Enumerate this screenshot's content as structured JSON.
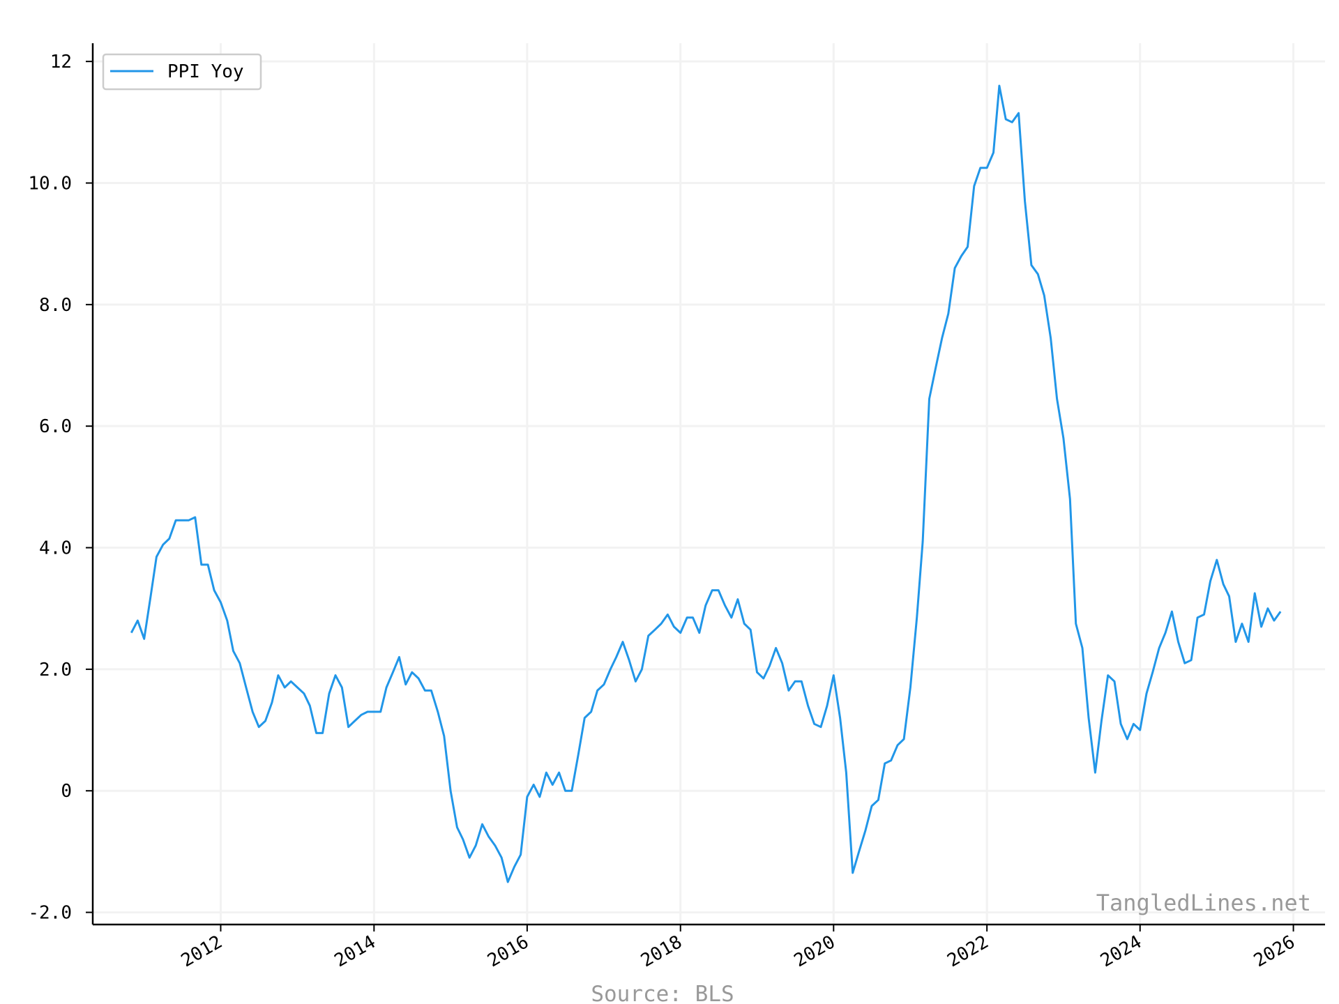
{
  "chart_data": {
    "type": "line",
    "title": "",
    "xlabel": "",
    "ylabel": "",
    "xlim": [
      "2010-05-01",
      "2026-06-01"
    ],
    "ylim": [
      -2.2,
      12.3
    ],
    "grid": true,
    "legend_placement": "top-left",
    "y_ticks": [
      {
        "value": 12,
        "label": "12"
      },
      {
        "value": 10,
        "label": "10.0"
      },
      {
        "value": 8,
        "label": "8.0"
      },
      {
        "value": 6,
        "label": "6.0"
      },
      {
        "value": 4,
        "label": "4.0"
      },
      {
        "value": 2,
        "label": "2.0"
      },
      {
        "value": 0,
        "label": "0"
      },
      {
        "value": -2,
        "label": "-2.0"
      }
    ],
    "x_ticks": [
      {
        "value": "2012-01-01",
        "label": "2012"
      },
      {
        "value": "2014-01-01",
        "label": "2014"
      },
      {
        "value": "2016-01-01",
        "label": "2016"
      },
      {
        "value": "2018-01-01",
        "label": "2018"
      },
      {
        "value": "2020-01-01",
        "label": "2020"
      },
      {
        "value": "2022-01-01",
        "label": "2022"
      },
      {
        "value": "2024-01-01",
        "label": "2024"
      },
      {
        "value": "2026-01-01",
        "label": "2026"
      }
    ],
    "series": [
      {
        "name": "PPI Yoy",
        "color": "#2196e8",
        "x": [
          "2010-11",
          "2010-12",
          "2011-01",
          "2011-02",
          "2011-03",
          "2011-04",
          "2011-05",
          "2011-06",
          "2011-07",
          "2011-08",
          "2011-09",
          "2011-10",
          "2011-11",
          "2011-12",
          "2012-01",
          "2012-02",
          "2012-03",
          "2012-04",
          "2012-05",
          "2012-06",
          "2012-07",
          "2012-08",
          "2012-09",
          "2012-10",
          "2012-11",
          "2012-12",
          "2013-01",
          "2013-02",
          "2013-03",
          "2013-04",
          "2013-05",
          "2013-06",
          "2013-07",
          "2013-08",
          "2013-09",
          "2013-10",
          "2013-11",
          "2013-12",
          "2014-01",
          "2014-02",
          "2014-03",
          "2014-04",
          "2014-05",
          "2014-06",
          "2014-07",
          "2014-08",
          "2014-09",
          "2014-10",
          "2014-11",
          "2014-12",
          "2015-01",
          "2015-02",
          "2015-03",
          "2015-04",
          "2015-05",
          "2015-06",
          "2015-07",
          "2015-08",
          "2015-09",
          "2015-10",
          "2015-11",
          "2015-12",
          "2016-01",
          "2016-02",
          "2016-03",
          "2016-04",
          "2016-05",
          "2016-06",
          "2016-07",
          "2016-08",
          "2016-09",
          "2016-10",
          "2016-11",
          "2016-12",
          "2017-01",
          "2017-02",
          "2017-03",
          "2017-04",
          "2017-05",
          "2017-06",
          "2017-07",
          "2017-08",
          "2017-09",
          "2017-10",
          "2017-11",
          "2017-12",
          "2018-01",
          "2018-02",
          "2018-03",
          "2018-04",
          "2018-05",
          "2018-06",
          "2018-07",
          "2018-08",
          "2018-09",
          "2018-10",
          "2018-11",
          "2018-12",
          "2019-01",
          "2019-02",
          "2019-03",
          "2019-04",
          "2019-05",
          "2019-06",
          "2019-07",
          "2019-08",
          "2019-09",
          "2019-10",
          "2019-11",
          "2019-12",
          "2020-01",
          "2020-02",
          "2020-03",
          "2020-04",
          "2020-05",
          "2020-06",
          "2020-07",
          "2020-08",
          "2020-09",
          "2020-10",
          "2020-11",
          "2020-12",
          "2021-01",
          "2021-02",
          "2021-03",
          "2021-04",
          "2021-05",
          "2021-06",
          "2021-07",
          "2021-08",
          "2021-09",
          "2021-10",
          "2021-11",
          "2021-12",
          "2022-01",
          "2022-02",
          "2022-03",
          "2022-04",
          "2022-05",
          "2022-06",
          "2022-07",
          "2022-08",
          "2022-09",
          "2022-10",
          "2022-11",
          "2022-12",
          "2023-01",
          "2023-02",
          "2023-03",
          "2023-04",
          "2023-05",
          "2023-06",
          "2023-07",
          "2023-08",
          "2023-09",
          "2023-10",
          "2023-11",
          "2023-12",
          "2024-01",
          "2024-02",
          "2024-03",
          "2024-04",
          "2024-05",
          "2024-06",
          "2024-07",
          "2024-08",
          "2024-09",
          "2024-10",
          "2024-11",
          "2024-12",
          "2025-01",
          "2025-02",
          "2025-03",
          "2025-04",
          "2025-05",
          "2025-06",
          "2025-07",
          "2025-08",
          "2025-09",
          "2025-10",
          "2025-11"
        ],
        "values": [
          2.6,
          2.8,
          2.5,
          3.2,
          3.85,
          4.05,
          4.15,
          4.45,
          4.45,
          4.45,
          4.5,
          3.72,
          3.72,
          3.3,
          3.1,
          2.8,
          2.3,
          2.1,
          1.7,
          1.3,
          1.05,
          1.15,
          1.45,
          1.9,
          1.7,
          1.8,
          1.7,
          1.6,
          1.4,
          0.95,
          0.95,
          1.6,
          1.9,
          1.7,
          1.05,
          1.15,
          1.25,
          1.3,
          1.3,
          1.3,
          1.7,
          1.95,
          2.2,
          1.75,
          1.95,
          1.85,
          1.65,
          1.65,
          1.3,
          0.9,
          0.0,
          -0.6,
          -0.8,
          -1.1,
          -0.9,
          -0.55,
          -0.75,
          -0.9,
          -1.1,
          -1.5,
          -1.25,
          -1.05,
          -0.1,
          0.1,
          -0.1,
          0.3,
          0.1,
          0.3,
          0.0,
          0.0,
          0.6,
          1.2,
          1.3,
          1.65,
          1.75,
          2.0,
          2.2,
          2.45,
          2.15,
          1.8,
          2.0,
          2.55,
          2.65,
          2.75,
          2.9,
          2.7,
          2.6,
          2.85,
          2.85,
          2.6,
          3.05,
          3.3,
          3.3,
          3.05,
          2.85,
          3.15,
          2.75,
          2.65,
          1.95,
          1.85,
          2.05,
          2.35,
          2.1,
          1.65,
          1.8,
          1.8,
          1.4,
          1.1,
          1.05,
          1.4,
          1.9,
          1.2,
          0.3,
          -1.35,
          -1.0,
          -0.65,
          -0.25,
          -0.15,
          0.45,
          0.5,
          0.75,
          0.85,
          1.7,
          2.85,
          4.1,
          6.45,
          6.95,
          7.45,
          7.85,
          8.6,
          8.8,
          8.95,
          9.95,
          10.25,
          10.25,
          10.5,
          11.6,
          11.05,
          11.0,
          11.15,
          9.7,
          8.65,
          8.5,
          8.15,
          7.45,
          6.45,
          5.8,
          4.8,
          2.75,
          2.35,
          1.2,
          0.3,
          1.15,
          1.9,
          1.8,
          1.1,
          0.85,
          1.1,
          1.0,
          1.6,
          1.95,
          2.35,
          2.6,
          2.95,
          2.45,
          2.1,
          2.15,
          2.85,
          2.9,
          3.45,
          3.8,
          3.4,
          3.2,
          2.45,
          2.75,
          2.45,
          3.25,
          2.7,
          3.0,
          2.8,
          2.95
        ]
      }
    ]
  },
  "watermark": "TangledLines.net",
  "source": "Source: BLS",
  "colors": {
    "line": "#2196e8",
    "grid": "#f2f2f2",
    "axis": "#000000",
    "muted_text": "#999999"
  }
}
